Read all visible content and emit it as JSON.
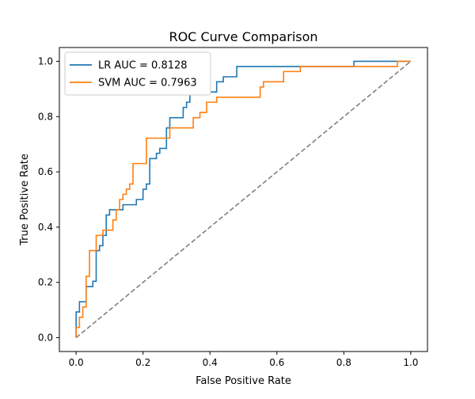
{
  "chart_data": {
    "type": "line",
    "title": "ROC Curve Comparison",
    "xlabel": "False Positive Rate",
    "ylabel": "True Positive Rate",
    "xlim": [
      -0.05,
      1.05
    ],
    "ylim": [
      -0.05,
      1.05
    ],
    "xticks": [
      0.0,
      0.2,
      0.4,
      0.6,
      0.8,
      1.0
    ],
    "yticks": [
      0.0,
      0.2,
      0.4,
      0.6,
      0.8,
      1.0
    ],
    "xtick_labels": [
      "0.0",
      "0.2",
      "0.4",
      "0.6",
      "0.8",
      "1.0"
    ],
    "ytick_labels": [
      "0.0",
      "0.2",
      "0.4",
      "0.6",
      "0.8",
      "1.0"
    ],
    "grid": false,
    "legend_position": "top-left",
    "series": [
      {
        "name": "LR AUC = 0.8128",
        "color": "#1f77b4",
        "style": "solid",
        "points": [
          [
            0.0,
            0.0
          ],
          [
            0.0,
            0.093
          ],
          [
            0.01,
            0.093
          ],
          [
            0.01,
            0.13
          ],
          [
            0.03,
            0.13
          ],
          [
            0.03,
            0.185
          ],
          [
            0.05,
            0.185
          ],
          [
            0.05,
            0.204
          ],
          [
            0.06,
            0.204
          ],
          [
            0.06,
            0.315
          ],
          [
            0.07,
            0.315
          ],
          [
            0.07,
            0.333
          ],
          [
            0.08,
            0.333
          ],
          [
            0.08,
            0.37
          ],
          [
            0.09,
            0.37
          ],
          [
            0.09,
            0.444
          ],
          [
            0.1,
            0.444
          ],
          [
            0.1,
            0.463
          ],
          [
            0.14,
            0.463
          ],
          [
            0.14,
            0.481
          ],
          [
            0.18,
            0.481
          ],
          [
            0.18,
            0.5
          ],
          [
            0.2,
            0.5
          ],
          [
            0.2,
            0.537
          ],
          [
            0.21,
            0.537
          ],
          [
            0.21,
            0.556
          ],
          [
            0.22,
            0.556
          ],
          [
            0.22,
            0.648
          ],
          [
            0.24,
            0.648
          ],
          [
            0.24,
            0.667
          ],
          [
            0.25,
            0.667
          ],
          [
            0.25,
            0.685
          ],
          [
            0.27,
            0.685
          ],
          [
            0.27,
            0.759
          ],
          [
            0.28,
            0.759
          ],
          [
            0.28,
            0.796
          ],
          [
            0.32,
            0.796
          ],
          [
            0.32,
            0.833
          ],
          [
            0.33,
            0.833
          ],
          [
            0.33,
            0.852
          ],
          [
            0.34,
            0.852
          ],
          [
            0.34,
            0.889
          ],
          [
            0.42,
            0.889
          ],
          [
            0.42,
            0.926
          ],
          [
            0.44,
            0.926
          ],
          [
            0.44,
            0.944
          ],
          [
            0.48,
            0.944
          ],
          [
            0.48,
            0.981
          ],
          [
            0.83,
            0.981
          ],
          [
            0.83,
            1.0
          ],
          [
            1.0,
            1.0
          ]
        ]
      },
      {
        "name": "SVM AUC = 0.7963",
        "color": "#ff7f0e",
        "style": "solid",
        "points": [
          [
            0.0,
            0.0
          ],
          [
            0.0,
            0.037
          ],
          [
            0.01,
            0.037
          ],
          [
            0.01,
            0.074
          ],
          [
            0.02,
            0.074
          ],
          [
            0.02,
            0.111
          ],
          [
            0.03,
            0.111
          ],
          [
            0.03,
            0.222
          ],
          [
            0.04,
            0.222
          ],
          [
            0.04,
            0.315
          ],
          [
            0.06,
            0.315
          ],
          [
            0.06,
            0.37
          ],
          [
            0.08,
            0.37
          ],
          [
            0.08,
            0.389
          ],
          [
            0.11,
            0.389
          ],
          [
            0.11,
            0.426
          ],
          [
            0.12,
            0.426
          ],
          [
            0.12,
            0.463
          ],
          [
            0.13,
            0.463
          ],
          [
            0.13,
            0.5
          ],
          [
            0.14,
            0.5
          ],
          [
            0.14,
            0.519
          ],
          [
            0.15,
            0.519
          ],
          [
            0.15,
            0.537
          ],
          [
            0.16,
            0.537
          ],
          [
            0.16,
            0.556
          ],
          [
            0.17,
            0.556
          ],
          [
            0.17,
            0.63
          ],
          [
            0.21,
            0.63
          ],
          [
            0.21,
            0.722
          ],
          [
            0.28,
            0.722
          ],
          [
            0.28,
            0.759
          ],
          [
            0.35,
            0.759
          ],
          [
            0.35,
            0.796
          ],
          [
            0.37,
            0.796
          ],
          [
            0.37,
            0.815
          ],
          [
            0.39,
            0.815
          ],
          [
            0.39,
            0.852
          ],
          [
            0.42,
            0.852
          ],
          [
            0.42,
            0.87
          ],
          [
            0.55,
            0.87
          ],
          [
            0.55,
            0.907
          ],
          [
            0.56,
            0.907
          ],
          [
            0.56,
            0.926
          ],
          [
            0.62,
            0.926
          ],
          [
            0.62,
            0.963
          ],
          [
            0.67,
            0.963
          ],
          [
            0.67,
            0.981
          ],
          [
            0.96,
            0.981
          ],
          [
            0.96,
            1.0
          ],
          [
            1.0,
            1.0
          ]
        ]
      },
      {
        "name": "",
        "color": "#808080",
        "style": "dashed",
        "points": [
          [
            0.0,
            0.0
          ],
          [
            1.0,
            1.0
          ]
        ]
      }
    ]
  }
}
